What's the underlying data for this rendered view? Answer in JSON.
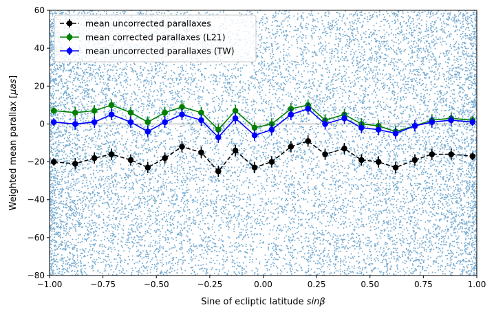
{
  "chart_data": {
    "type": "scatter",
    "title": "",
    "xlabel": "Sine of ecliptic latitude sinβ",
    "xlabel_parts": [
      "Sine of ecliptic latitude ",
      "sinβ"
    ],
    "ylabel": "Weighted mean parallax [μas]",
    "ylabel_parts": [
      "Weighted mean parallax [",
      "μas",
      "]"
    ],
    "xlim": [
      -1.0,
      1.0
    ],
    "ylim": [
      -80,
      60
    ],
    "xticks": [
      -1.0,
      -0.75,
      -0.5,
      -0.25,
      0.0,
      0.25,
      0.5,
      0.75,
      1.0
    ],
    "xtick_labels": [
      "−1.00",
      "−0.75",
      "−0.50",
      "−0.25",
      "0.00",
      "0.25",
      "0.50",
      "0.75",
      "1.00"
    ],
    "yticks": [
      -80,
      -60,
      -40,
      -20,
      0,
      20,
      40,
      60
    ],
    "ytick_labels": [
      "−80",
      "−60",
      "−40",
      "−20",
      "0",
      "20",
      "40",
      "60"
    ],
    "grid": false,
    "legend_position": "upper-left",
    "background_scatter_color": "#1f77b4",
    "zero_line": true,
    "x": [
      -0.98,
      -0.88,
      -0.79,
      -0.71,
      -0.62,
      -0.54,
      -0.46,
      -0.38,
      -0.29,
      -0.21,
      -0.13,
      -0.04,
      0.04,
      0.13,
      0.21,
      0.29,
      0.38,
      0.46,
      0.54,
      0.62,
      0.71,
      0.79,
      0.88,
      0.98
    ],
    "series": [
      {
        "name": "mean uncorrected parallaxes",
        "color": "#000000",
        "linestyle": "dashed",
        "values": [
          -20,
          -21,
          -18,
          -16,
          -19,
          -23,
          -18,
          -12,
          -15,
          -25,
          -14,
          -23,
          -20,
          -12,
          -9,
          -16,
          -13,
          -19,
          -20,
          -23,
          -19,
          -16,
          -16,
          -17
        ],
        "errors": [
          2,
          3,
          3,
          3,
          3,
          3,
          3,
          3,
          3,
          3,
          3,
          3,
          3,
          3,
          3,
          3,
          3,
          3,
          3,
          3,
          3,
          3,
          3,
          2
        ]
      },
      {
        "name": "mean corrected parallaxes (L21)",
        "color": "#008000",
        "linestyle": "solid",
        "values": [
          7,
          6,
          7,
          10,
          6,
          1,
          6,
          9,
          6,
          -3,
          7,
          -2,
          0,
          8,
          10,
          2,
          5,
          0,
          -1,
          -4,
          -1,
          2,
          3,
          2
        ],
        "errors": [
          2,
          3,
          3,
          3,
          3,
          3,
          3,
          3,
          3,
          3,
          3,
          3,
          3,
          3,
          3,
          3,
          3,
          3,
          3,
          3,
          3,
          3,
          3,
          2
        ]
      },
      {
        "name": "mean uncorrected parallaxes (TW)",
        "color": "#0000ff",
        "linestyle": "solid",
        "values": [
          1,
          0,
          1,
          5,
          1,
          -4,
          1,
          5,
          2,
          -7,
          3,
          -6,
          -3,
          5,
          8,
          0,
          3,
          -2,
          -3,
          -5,
          -1,
          1,
          2,
          1
        ],
        "errors": [
          2,
          3,
          3,
          3,
          3,
          3,
          3,
          3,
          3,
          3,
          3,
          3,
          3,
          3,
          3,
          3,
          3,
          3,
          3,
          3,
          3,
          3,
          3,
          2
        ]
      }
    ]
  }
}
